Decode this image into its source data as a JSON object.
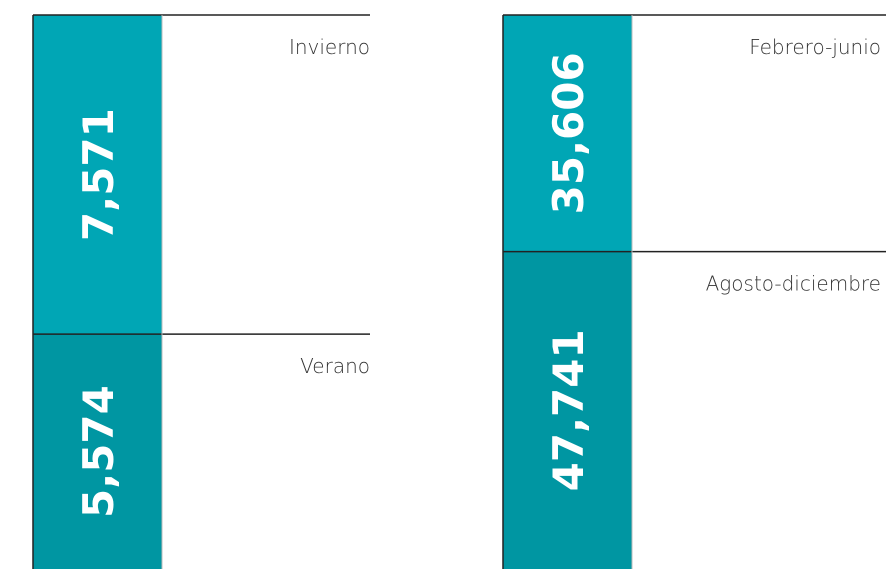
{
  "chart_data": [
    {
      "type": "bar",
      "stacked": true,
      "categories": [
        "Invierno",
        "Verano"
      ],
      "values": [
        7571,
        5574
      ],
      "value_labels": [
        "7,571",
        "5,574"
      ],
      "colors": [
        "#00a6b5",
        "#0096a2"
      ]
    },
    {
      "type": "bar",
      "stacked": true,
      "categories": [
        "Febrero-junio",
        "Agosto-diciembre"
      ],
      "values": [
        35606,
        47741
      ],
      "value_labels": [
        "35,606",
        "47,741"
      ],
      "colors": [
        "#00a6b5",
        "#0096a2"
      ]
    }
  ]
}
